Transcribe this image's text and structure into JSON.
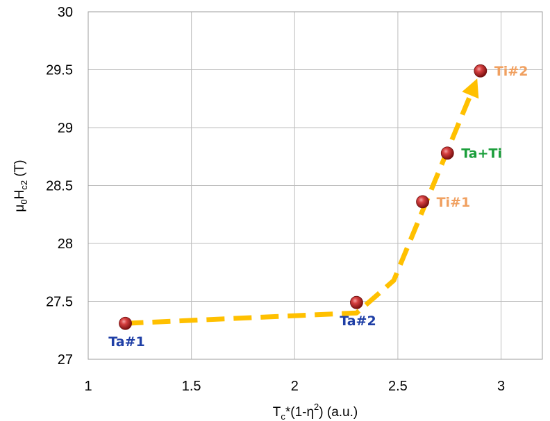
{
  "chart_data": {
    "type": "scatter",
    "xlabel": {
      "prefix": "T",
      "sub": "c",
      "mid": "*(1-η",
      "sup": "2",
      "suffix": ") (a.u.)"
    },
    "ylabel": {
      "prefix": "μ",
      "sub1": "0",
      "mid": "H",
      "sub2": "c2",
      "suffix": " (T)"
    },
    "xlim": [
      1,
      3.2
    ],
    "ylim": [
      27,
      30
    ],
    "xticks": [
      1,
      1.5,
      2,
      2.5,
      3
    ],
    "xtick_labels": [
      "1",
      "1.5",
      "2",
      "2.5",
      "3"
    ],
    "yticks": [
      27,
      27.5,
      28,
      28.5,
      29,
      29.5,
      30
    ],
    "ytick_labels": [
      "27",
      "27.5",
      "28",
      "28.5",
      "29",
      "29.5",
      "30"
    ],
    "grid": true,
    "points": [
      {
        "label": "Ta#1",
        "x": 1.18,
        "y": 27.31,
        "color": "#1f3fa6",
        "label_pos": "below"
      },
      {
        "label": "Ta#2",
        "x": 2.3,
        "y": 27.49,
        "color": "#1f3fa6",
        "label_pos": "below"
      },
      {
        "label": "Ti#1",
        "x": 2.62,
        "y": 28.36,
        "color": "#f0a060",
        "label_pos": "right"
      },
      {
        "label": "Ta+Ti",
        "x": 2.74,
        "y": 28.78,
        "color": "#1a9e3a",
        "label_pos": "right"
      },
      {
        "label": "Ti#2",
        "x": 2.9,
        "y": 29.49,
        "color": "#f0a060",
        "label_pos": "right"
      }
    ],
    "trend_arrow": {
      "color": "#ffc000",
      "style": "dashed",
      "path": [
        [
          1.18,
          27.31
        ],
        [
          2.3,
          27.4
        ],
        [
          2.48,
          27.68
        ],
        [
          2.9,
          29.49
        ]
      ]
    },
    "marker_color": "#c0392b"
  }
}
